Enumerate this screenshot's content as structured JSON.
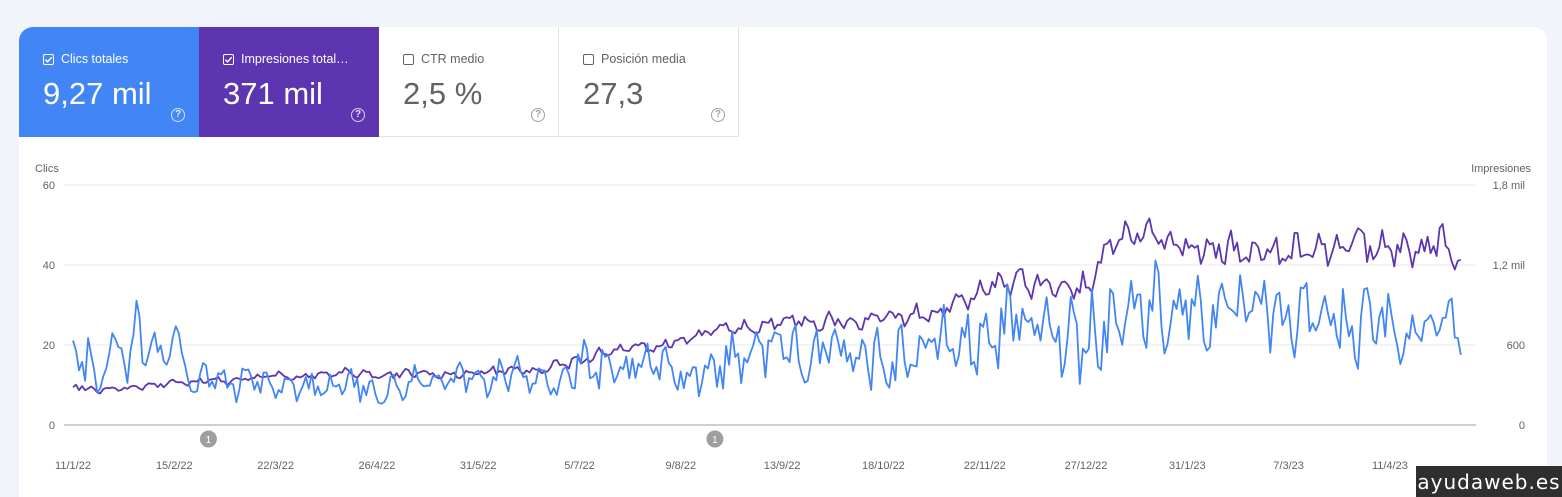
{
  "metrics": [
    {
      "label": "Clics totales",
      "value": "9,27 mil",
      "checked": true,
      "color": "#4285f4"
    },
    {
      "label": "Impresiones total…",
      "value": "371 mil",
      "checked": true,
      "color": "#5e35b1"
    },
    {
      "label": "CTR medio",
      "value": "2,5 %",
      "checked": false,
      "color": "#ffffff"
    },
    {
      "label": "Posición media",
      "value": "27,3",
      "checked": false,
      "color": "#ffffff"
    }
  ],
  "help_glyph": "?",
  "chart_data": {
    "type": "line",
    "left_axis": {
      "label": "Clics",
      "ticks": [
        {
          "v": 0,
          "t": "0"
        },
        {
          "v": 20,
          "t": "20"
        },
        {
          "v": 40,
          "t": "40"
        },
        {
          "v": 60,
          "t": "60"
        }
      ],
      "range": [
        0,
        60
      ]
    },
    "right_axis": {
      "label": "Impresiones",
      "ticks": [
        {
          "v": 0,
          "t": "0"
        },
        {
          "v": 600,
          "t": "600"
        },
        {
          "v": 1200,
          "t": "1,2 mil"
        },
        {
          "v": 1800,
          "t": "1,8 mil"
        }
      ],
      "range": [
        0,
        1800
      ]
    },
    "x_ticks": [
      "11/1/22",
      "15/2/22",
      "22/3/22",
      "26/4/22",
      "31/5/22",
      "5/7/22",
      "9/8/22",
      "13/9/22",
      "18/10/22",
      "22/11/22",
      "27/12/22",
      "31/1/23",
      "7/3/23",
      "11/4/23"
    ],
    "annotations": [
      {
        "x_tick_index": 2,
        "text": "1"
      },
      {
        "x_tick_index": 7,
        "text": "1"
      }
    ],
    "grid": true,
    "series": [
      {
        "name": "Clics totales",
        "axis": "left",
        "color": "#4285f4",
        "anchors": [
          [
            0,
            22
          ],
          [
            0.06,
            14
          ],
          [
            0.12,
            13
          ],
          [
            0.16,
            24
          ],
          [
            0.22,
            8
          ],
          [
            0.28,
            10
          ],
          [
            0.35,
            21
          ],
          [
            0.42,
            20
          ],
          [
            0.5,
            17
          ],
          [
            0.55,
            15
          ],
          [
            0.62,
            31
          ],
          [
            0.7,
            14
          ],
          [
            0.8,
            24
          ],
          [
            0.9,
            12
          ],
          [
            1.0,
            27
          ],
          [
            1.1,
            11
          ],
          [
            1.2,
            9
          ],
          [
            1.3,
            12
          ],
          [
            1.4,
            12
          ],
          [
            1.5,
            9
          ],
          [
            1.6,
            10
          ],
          [
            1.7,
            12
          ],
          [
            1.8,
            11
          ],
          [
            1.9,
            10
          ],
          [
            2.0,
            9
          ],
          [
            2.2,
            10
          ],
          [
            2.5,
            9
          ],
          [
            2.8,
            10
          ],
          [
            3.0,
            8
          ],
          [
            3.3,
            10
          ],
          [
            3.5,
            12
          ],
          [
            3.8,
            12
          ],
          [
            4.0,
            11
          ],
          [
            4.3,
            12
          ],
          [
            4.6,
            14
          ],
          [
            4.8,
            10
          ],
          [
            5.0,
            15
          ],
          [
            5.3,
            12
          ],
          [
            5.6,
            14
          ],
          [
            5.8,
            15
          ],
          [
            6.0,
            13
          ],
          [
            6.3,
            14
          ],
          [
            6.6,
            18
          ],
          [
            6.9,
            20
          ],
          [
            7.0,
            20
          ],
          [
            7.3,
            17
          ],
          [
            7.6,
            18
          ],
          [
            7.9,
            17
          ],
          [
            8.0,
            16
          ],
          [
            8.3,
            18
          ],
          [
            8.6,
            21
          ],
          [
            8.9,
            20
          ],
          [
            9.0,
            22
          ],
          [
            9.3,
            26
          ],
          [
            9.6,
            24
          ],
          [
            9.9,
            23
          ],
          [
            10.0,
            22
          ],
          [
            10.3,
            27
          ],
          [
            10.6,
            30
          ],
          [
            10.9,
            29
          ],
          [
            11.0,
            30
          ],
          [
            11.3,
            27
          ],
          [
            11.6,
            28
          ],
          [
            11.9,
            27
          ],
          [
            12.0,
            25
          ],
          [
            12.3,
            29
          ],
          [
            12.6,
            24
          ],
          [
            12.9,
            26
          ],
          [
            13.0,
            22
          ],
          [
            13.3,
            23
          ],
          [
            13.5,
            30
          ],
          [
            13.7,
            23
          ]
        ],
        "amp": [
          [
            0,
            4
          ],
          [
            3,
            3
          ],
          [
            5,
            5
          ],
          [
            7,
            6
          ],
          [
            9,
            7
          ],
          [
            10,
            10
          ],
          [
            11,
            9
          ],
          [
            13,
            8
          ]
        ],
        "seed": 7
      },
      {
        "name": "Impresiones totales",
        "axis": "right",
        "color": "#5e35b1",
        "anchors": [
          [
            0,
            300
          ],
          [
            0.2,
            260
          ],
          [
            0.5,
            280
          ],
          [
            0.8,
            300
          ],
          [
            1.0,
            310
          ],
          [
            1.3,
            340
          ],
          [
            1.5,
            330
          ],
          [
            2.0,
            370
          ],
          [
            2.3,
            360
          ],
          [
            2.6,
            400
          ],
          [
            3.0,
            370
          ],
          [
            3.3,
            390
          ],
          [
            3.6,
            380
          ],
          [
            4.0,
            400
          ],
          [
            4.3,
            400
          ],
          [
            4.6,
            420
          ],
          [
            5.0,
            480
          ],
          [
            5.3,
            560
          ],
          [
            5.6,
            580
          ],
          [
            6.0,
            620
          ],
          [
            6.3,
            700
          ],
          [
            6.6,
            740
          ],
          [
            6.9,
            760
          ],
          [
            7.0,
            800
          ],
          [
            7.3,
            760
          ],
          [
            7.6,
            790
          ],
          [
            7.9,
            780
          ],
          [
            8.0,
            790
          ],
          [
            8.3,
            830
          ],
          [
            8.6,
            870
          ],
          [
            8.9,
            960
          ],
          [
            9.0,
            1050
          ],
          [
            9.3,
            1060
          ],
          [
            9.6,
            1060
          ],
          [
            9.9,
            1040
          ],
          [
            10.0,
            1060
          ],
          [
            10.3,
            1400
          ],
          [
            10.6,
            1440
          ],
          [
            10.8,
            1350
          ],
          [
            11.0,
            1300
          ],
          [
            11.3,
            1330
          ],
          [
            11.6,
            1290
          ],
          [
            11.9,
            1260
          ],
          [
            12.0,
            1300
          ],
          [
            12.3,
            1320
          ],
          [
            12.6,
            1350
          ],
          [
            12.9,
            1330
          ],
          [
            13.0,
            1300
          ],
          [
            13.3,
            1310
          ],
          [
            13.5,
            1400
          ],
          [
            13.7,
            1230
          ]
        ],
        "amp": [
          [
            0,
            25
          ],
          [
            4,
            30
          ],
          [
            6,
            45
          ],
          [
            9,
            70
          ],
          [
            10,
            120
          ],
          [
            11,
            110
          ],
          [
            13,
            110
          ]
        ],
        "seed": 3
      }
    ]
  },
  "watermark": "ayudaweb.es"
}
